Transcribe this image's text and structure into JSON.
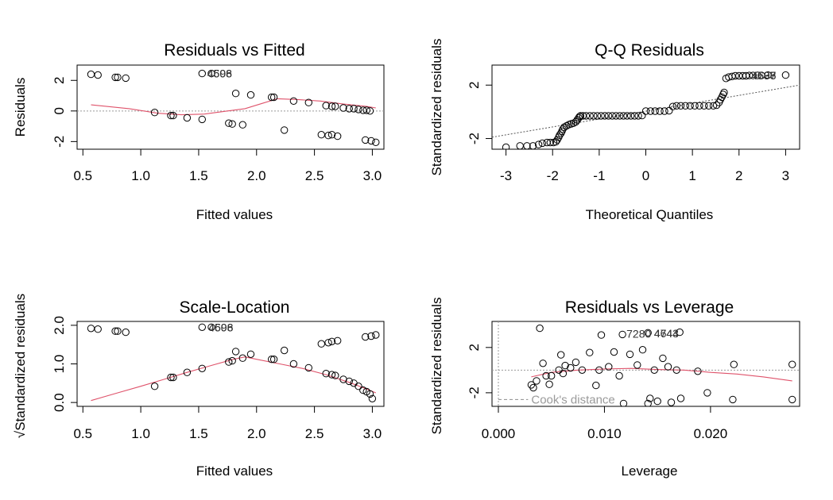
{
  "chart_data": [
    {
      "id": "rvf",
      "type": "scatter",
      "title": "Residuals vs Fitted",
      "xlabel": "Fitted values",
      "ylabel": "Residuals",
      "xlim": [
        0.45,
        3.1
      ],
      "ylim": [
        -2.5,
        3.0
      ],
      "xticks": [
        0.5,
        1.0,
        1.5,
        2.0,
        2.5,
        3.0
      ],
      "xtick_labels": [
        "0.5",
        "1.0",
        "1.5",
        "2.0",
        "2.5",
        "3.0"
      ],
      "yticks": [
        -2,
        0,
        2
      ],
      "ytick_labels": [
        "-2",
        "0",
        "2"
      ],
      "hline": 0,
      "points": [
        [
          0.57,
          2.4
        ],
        [
          0.63,
          2.35
        ],
        [
          0.78,
          2.2
        ],
        [
          0.8,
          2.2
        ],
        [
          0.87,
          2.15
        ],
        [
          1.12,
          -0.1
        ],
        [
          1.26,
          -0.3
        ],
        [
          1.28,
          -0.3
        ],
        [
          1.4,
          -0.45
        ],
        [
          1.53,
          -0.55
        ],
        [
          1.53,
          2.45
        ],
        [
          1.61,
          2.45
        ],
        [
          1.76,
          -0.8
        ],
        [
          1.79,
          -0.85
        ],
        [
          1.82,
          1.15
        ],
        [
          1.88,
          -0.9
        ],
        [
          1.95,
          1.05
        ],
        [
          2.13,
          0.9
        ],
        [
          2.15,
          0.9
        ],
        [
          2.24,
          -1.25
        ],
        [
          2.32,
          0.65
        ],
        [
          2.45,
          0.55
        ],
        [
          2.56,
          -1.55
        ],
        [
          2.6,
          0.35
        ],
        [
          2.62,
          -1.6
        ],
        [
          2.65,
          0.3
        ],
        [
          2.65,
          -1.55
        ],
        [
          2.68,
          0.3
        ],
        [
          2.7,
          -1.65
        ],
        [
          2.75,
          0.2
        ],
        [
          2.8,
          0.15
        ],
        [
          2.84,
          0.15
        ],
        [
          2.88,
          0.1
        ],
        [
          2.92,
          0.05
        ],
        [
          2.94,
          -1.9
        ],
        [
          2.95,
          0.05
        ],
        [
          2.98,
          0.0
        ],
        [
          2.99,
          -1.95
        ],
        [
          3.03,
          -2.05
        ]
      ],
      "smooth": [
        [
          0.57,
          0.4
        ],
        [
          0.9,
          0.15
        ],
        [
          1.15,
          -0.15
        ],
        [
          1.35,
          -0.25
        ],
        [
          1.55,
          -0.2
        ],
        [
          1.75,
          0.0
        ],
        [
          1.9,
          0.15
        ],
        [
          2.05,
          0.5
        ],
        [
          2.18,
          0.8
        ],
        [
          2.35,
          0.75
        ],
        [
          2.55,
          0.65
        ],
        [
          2.75,
          0.45
        ],
        [
          2.95,
          0.3
        ],
        [
          3.03,
          0.2
        ]
      ],
      "labels": [
        {
          "x": 1.54,
          "y": 2.45,
          "text": "4598"
        },
        {
          "x": 1.54,
          "y": 2.45,
          "text": "4606"
        }
      ]
    },
    {
      "id": "qq",
      "type": "scatter",
      "title": "Q-Q Residuals",
      "xlabel": "Theoretical Quantiles",
      "ylabel": "Standardized residuals",
      "xlim": [
        -3.3,
        3.3
      ],
      "ylim": [
        -2.8,
        3.5
      ],
      "xticks": [
        -3,
        -2,
        -1,
        0,
        1,
        2,
        3
      ],
      "xtick_labels": [
        "-3",
        "-2",
        "-1",
        "0",
        "1",
        "2",
        "3"
      ],
      "yticks": [
        -2,
        2
      ],
      "ytick_labels": [
        "-2",
        "2"
      ],
      "line": [
        [
          -3.3,
          -1.9
        ],
        [
          3.3,
          2.0
        ]
      ],
      "points": [
        [
          -3.0,
          -2.65
        ],
        [
          -2.7,
          -2.55
        ],
        [
          -2.55,
          -2.55
        ],
        [
          -2.42,
          -2.55
        ],
        [
          -2.3,
          -2.45
        ],
        [
          -2.22,
          -2.35
        ],
        [
          -2.12,
          -2.3
        ],
        [
          -2.05,
          -2.3
        ],
        [
          -1.98,
          -2.3
        ],
        [
          -1.93,
          -2.25
        ],
        [
          -1.9,
          -2.1
        ],
        [
          -1.87,
          -1.9
        ],
        [
          -1.85,
          -1.75
        ],
        [
          -1.82,
          -1.6
        ],
        [
          -1.8,
          -1.45
        ],
        [
          -1.78,
          -1.3
        ],
        [
          -1.75,
          -1.15
        ],
        [
          -1.7,
          -1.05
        ],
        [
          -1.65,
          -0.95
        ],
        [
          -1.6,
          -0.9
        ],
        [
          -1.55,
          -0.85
        ],
        [
          -1.5,
          -0.75
        ],
        [
          -1.47,
          -0.6
        ],
        [
          -1.44,
          -0.45
        ],
        [
          -1.42,
          -0.35
        ],
        [
          -1.4,
          -0.3
        ],
        [
          -1.35,
          -0.3
        ],
        [
          -1.28,
          -0.3
        ],
        [
          -1.2,
          -0.3
        ],
        [
          -1.12,
          -0.3
        ],
        [
          -1.04,
          -0.3
        ],
        [
          -0.96,
          -0.3
        ],
        [
          -0.88,
          -0.3
        ],
        [
          -0.8,
          -0.3
        ],
        [
          -0.72,
          -0.3
        ],
        [
          -0.64,
          -0.3
        ],
        [
          -0.56,
          -0.3
        ],
        [
          -0.48,
          -0.3
        ],
        [
          -0.4,
          -0.3
        ],
        [
          -0.32,
          -0.3
        ],
        [
          -0.24,
          -0.3
        ],
        [
          -0.16,
          -0.3
        ],
        [
          -0.08,
          -0.28
        ],
        [
          0.0,
          0.05
        ],
        [
          0.1,
          0.05
        ],
        [
          0.2,
          0.05
        ],
        [
          0.3,
          0.05
        ],
        [
          0.4,
          0.05
        ],
        [
          0.5,
          0.08
        ],
        [
          0.58,
          0.4
        ],
        [
          0.66,
          0.45
        ],
        [
          0.75,
          0.45
        ],
        [
          0.85,
          0.45
        ],
        [
          0.95,
          0.45
        ],
        [
          1.05,
          0.45
        ],
        [
          1.15,
          0.45
        ],
        [
          1.25,
          0.45
        ],
        [
          1.35,
          0.45
        ],
        [
          1.45,
          0.45
        ],
        [
          1.52,
          0.5
        ],
        [
          1.57,
          0.7
        ],
        [
          1.6,
          0.9
        ],
        [
          1.63,
          1.1
        ],
        [
          1.66,
          1.3
        ],
        [
          1.68,
          1.45
        ],
        [
          1.72,
          2.5
        ],
        [
          1.78,
          2.6
        ],
        [
          1.85,
          2.65
        ],
        [
          1.92,
          2.7
        ],
        [
          2.0,
          2.7
        ],
        [
          2.08,
          2.7
        ],
        [
          2.15,
          2.7
        ],
        [
          2.22,
          2.72
        ],
        [
          2.3,
          2.72
        ],
        [
          2.4,
          2.73
        ],
        [
          2.48,
          2.73
        ],
        [
          2.62,
          2.75
        ],
        [
          3.0,
          2.75
        ]
      ],
      "labels": [
        {
          "x": 2.18,
          "y": 2.72,
          "text": "4598"
        },
        {
          "x": 2.18,
          "y": 2.72,
          "text": "4606"
        },
        {
          "x": 2.18,
          "y": 2.72,
          "text": "4637"
        }
      ]
    },
    {
      "id": "sl",
      "type": "scatter",
      "title": "Scale-Location",
      "xlabel": "Fitted values",
      "ylabel": "√Standardized residuals",
      "xlim": [
        0.45,
        3.1
      ],
      "ylim": [
        -0.1,
        2.1
      ],
      "xticks": [
        0.5,
        1.0,
        1.5,
        2.0,
        2.5,
        3.0
      ],
      "xtick_labels": [
        "0.5",
        "1.0",
        "1.5",
        "2.0",
        "2.5",
        "3.0"
      ],
      "yticks": [
        0.0,
        1.0,
        2.0
      ],
      "ytick_labels": [
        "0.0",
        "1.0",
        "2.0"
      ],
      "points": [
        [
          0.57,
          1.92
        ],
        [
          0.63,
          1.9
        ],
        [
          0.78,
          1.85
        ],
        [
          0.8,
          1.85
        ],
        [
          0.87,
          1.82
        ],
        [
          1.12,
          0.42
        ],
        [
          1.26,
          0.65
        ],
        [
          1.28,
          0.65
        ],
        [
          1.4,
          0.78
        ],
        [
          1.53,
          0.88
        ],
        [
          1.53,
          1.95
        ],
        [
          1.61,
          1.95
        ],
        [
          1.76,
          1.05
        ],
        [
          1.79,
          1.08
        ],
        [
          1.82,
          1.32
        ],
        [
          1.88,
          1.15
        ],
        [
          1.95,
          1.25
        ],
        [
          2.13,
          1.12
        ],
        [
          2.15,
          1.12
        ],
        [
          2.24,
          1.35
        ],
        [
          2.32,
          1.0
        ],
        [
          2.45,
          0.9
        ],
        [
          2.56,
          1.52
        ],
        [
          2.6,
          0.75
        ],
        [
          2.62,
          1.55
        ],
        [
          2.65,
          0.72
        ],
        [
          2.65,
          1.58
        ],
        [
          2.68,
          0.7
        ],
        [
          2.7,
          1.6
        ],
        [
          2.75,
          0.6
        ],
        [
          2.8,
          0.55
        ],
        [
          2.84,
          0.5
        ],
        [
          2.88,
          0.42
        ],
        [
          2.92,
          0.32
        ],
        [
          2.94,
          1.7
        ],
        [
          2.95,
          0.28
        ],
        [
          2.98,
          0.22
        ],
        [
          2.99,
          1.72
        ],
        [
          3.0,
          0.1
        ],
        [
          3.03,
          1.75
        ]
      ],
      "smooth": [
        [
          0.57,
          0.05
        ],
        [
          0.8,
          0.25
        ],
        [
          1.0,
          0.42
        ],
        [
          1.2,
          0.6
        ],
        [
          1.4,
          0.78
        ],
        [
          1.6,
          0.95
        ],
        [
          1.8,
          1.12
        ],
        [
          1.9,
          1.18
        ],
        [
          2.0,
          1.12
        ],
        [
          2.2,
          1.0
        ],
        [
          2.4,
          0.88
        ],
        [
          2.6,
          0.72
        ],
        [
          2.8,
          0.52
        ],
        [
          2.95,
          0.35
        ],
        [
          3.03,
          0.25
        ]
      ],
      "labels": [
        {
          "x": 1.55,
          "y": 1.95,
          "text": "4598"
        },
        {
          "x": 1.55,
          "y": 1.95,
          "text": "4606"
        }
      ]
    },
    {
      "id": "rvl",
      "type": "scatter",
      "title": "Residuals vs Leverage",
      "xlabel": "Leverage",
      "ylabel": "Standardized residuals",
      "xlim": [
        -0.0006,
        0.0284
      ],
      "ylim": [
        -3.2,
        4.3
      ],
      "xticks": [
        0.0,
        0.01,
        0.02
      ],
      "xtick_labels": [
        "0.000",
        "0.010",
        "0.020"
      ],
      "yticks": [
        -2,
        2
      ],
      "ytick_labels": [
        "-2",
        "2"
      ],
      "hline": 0,
      "vline": 0,
      "legend_text": "Cook's distance",
      "points": [
        [
          0.0031,
          -1.3
        ],
        [
          0.0033,
          -1.55
        ],
        [
          0.0036,
          -0.95
        ],
        [
          0.0039,
          3.7
        ],
        [
          0.0042,
          0.6
        ],
        [
          0.0045,
          -0.5
        ],
        [
          0.0048,
          -1.25
        ],
        [
          0.005,
          -0.5
        ],
        [
          0.0057,
          0.0
        ],
        [
          0.0059,
          1.35
        ],
        [
          0.0061,
          -0.3
        ],
        [
          0.0063,
          0.4
        ],
        [
          0.0068,
          0.2
        ],
        [
          0.0073,
          0.7
        ],
        [
          0.0079,
          0.0
        ],
        [
          0.0086,
          1.55
        ],
        [
          0.0092,
          -1.35
        ],
        [
          0.0095,
          0.0
        ],
        [
          0.0097,
          3.1
        ],
        [
          0.0104,
          0.3
        ],
        [
          0.0109,
          1.6
        ],
        [
          0.0114,
          -0.5
        ],
        [
          0.0117,
          3.15
        ],
        [
          0.0118,
          -2.95
        ],
        [
          0.0124,
          1.4
        ],
        [
          0.0131,
          0.45
        ],
        [
          0.0136,
          1.8
        ],
        [
          0.0141,
          3.3
        ],
        [
          0.0141,
          -2.95
        ],
        [
          0.0143,
          -2.5
        ],
        [
          0.0147,
          0.0
        ],
        [
          0.015,
          -2.75
        ],
        [
          0.0155,
          1.05
        ],
        [
          0.016,
          0.3
        ],
        [
          0.0163,
          -2.85
        ],
        [
          0.0168,
          0.0
        ],
        [
          0.0171,
          3.35
        ],
        [
          0.0172,
          -2.5
        ],
        [
          0.0188,
          -0.1
        ],
        [
          0.0197,
          -2.0
        ],
        [
          0.0221,
          -2.6
        ],
        [
          0.0222,
          0.5
        ],
        [
          0.0277,
          0.5
        ],
        [
          0.0277,
          -2.6
        ]
      ],
      "smooth": [
        [
          0.0031,
          -0.6
        ],
        [
          0.005,
          -0.2
        ],
        [
          0.0075,
          0.0
        ],
        [
          0.01,
          0.1
        ],
        [
          0.0125,
          0.15
        ],
        [
          0.015,
          0.05
        ],
        [
          0.0175,
          0.0
        ],
        [
          0.02,
          -0.2
        ],
        [
          0.0225,
          -0.35
        ],
        [
          0.025,
          -0.6
        ],
        [
          0.0277,
          -0.95
        ]
      ],
      "cook_segment": [
        [
          0.0,
          -2.6
        ],
        [
          0.0028,
          -2.6
        ]
      ],
      "labels": [
        {
          "x": 0.0117,
          "y": 3.2,
          "text": "7280"
        },
        {
          "x": 0.0143,
          "y": 3.25,
          "text": "4644"
        },
        {
          "x": 0.0143,
          "y": 3.25,
          "text": "4743"
        }
      ]
    }
  ]
}
